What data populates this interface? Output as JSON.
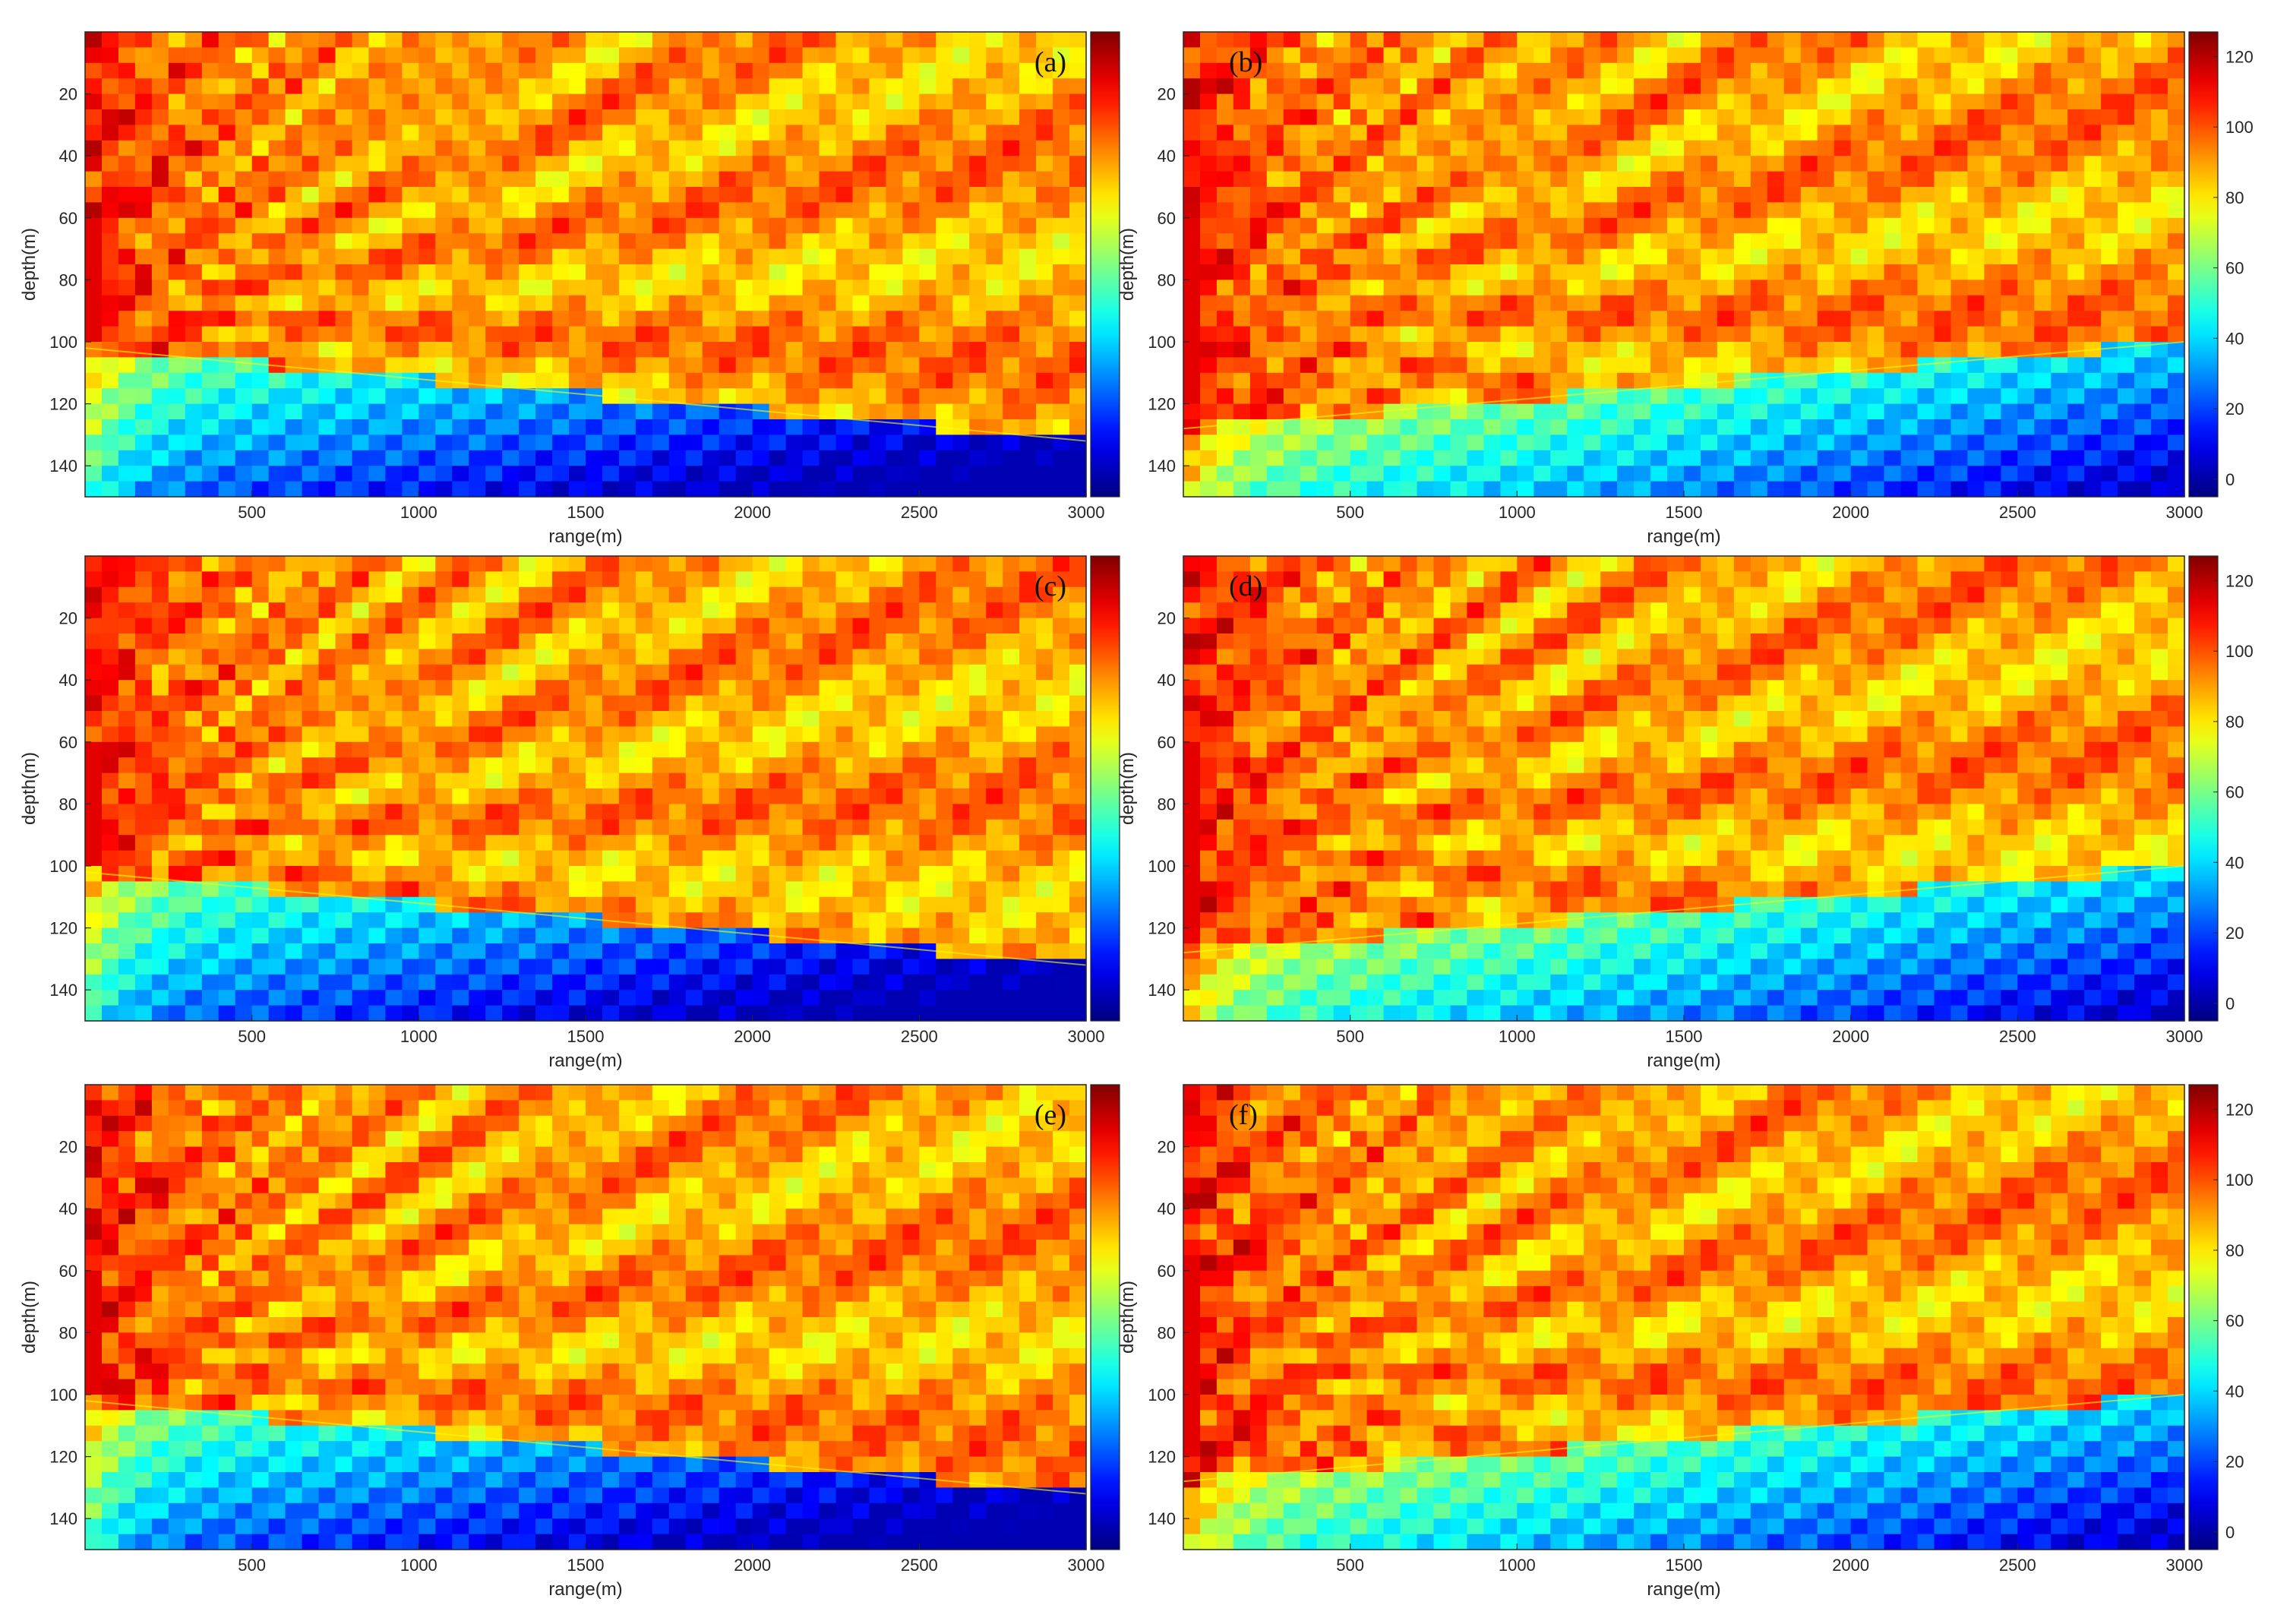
{
  "chart_data": [
    {
      "type": "heatmap",
      "panel_label": "(a)",
      "xlabel": "range(m)",
      "ylabel": "depth(m)",
      "xlim": [
        0,
        3000
      ],
      "ylim": [
        150,
        0
      ],
      "xticks": [
        500,
        1000,
        1500,
        2000,
        2500,
        3000
      ],
      "yticks": [
        20,
        40,
        60,
        80,
        100,
        120,
        140
      ],
      "colorbar": {
        "shown": true,
        "ticks_labeled": false
      },
      "colormap": "jet",
      "source_depth": 90,
      "interface_depth": {
        "x": [
          0,
          3000
        ],
        "y": [
          102,
          132
        ]
      },
      "lower_level": "low"
    },
    {
      "type": "heatmap",
      "panel_label": "(b)",
      "xlabel": "range(m)",
      "ylabel": "depth(m)",
      "xlim": [
        0,
        3000
      ],
      "ylim": [
        150,
        0
      ],
      "xticks": [
        500,
        1000,
        1500,
        2000,
        2500,
        3000
      ],
      "yticks": [
        20,
        40,
        60,
        80,
        100,
        120,
        140
      ],
      "colorbar": {
        "shown": true,
        "ticks": [
          0,
          20,
          40,
          60,
          80,
          100,
          120
        ]
      },
      "colormap": "jet",
      "source_depth": 90,
      "interface_depth": {
        "x": [
          0,
          3000
        ],
        "y": [
          128,
          100
        ]
      },
      "lower_level": "moderate"
    },
    {
      "type": "heatmap",
      "panel_label": "(c)",
      "xlabel": "range(m)",
      "ylabel": "depth(m)",
      "xlim": [
        0,
        3000
      ],
      "ylim": [
        150,
        0
      ],
      "xticks": [
        500,
        1000,
        1500,
        2000,
        2500,
        3000
      ],
      "yticks": [
        20,
        40,
        60,
        80,
        100,
        120,
        140
      ],
      "colorbar": {
        "shown": true,
        "ticks_labeled": false
      },
      "colormap": "jet",
      "source_depth": 90,
      "interface_depth": {
        "x": [
          0,
          3000
        ],
        "y": [
          102,
          132
        ]
      },
      "lower_level": "low"
    },
    {
      "type": "heatmap",
      "panel_label": "(d)",
      "xlabel": "range(m)",
      "ylabel": "depth(m)",
      "xlim": [
        0,
        3000
      ],
      "ylim": [
        150,
        0
      ],
      "xticks": [
        500,
        1000,
        1500,
        2000,
        2500,
        3000
      ],
      "yticks": [
        20,
        40,
        60,
        80,
        100,
        120,
        140
      ],
      "colorbar": {
        "shown": true,
        "ticks": [
          0,
          20,
          40,
          60,
          80,
          100,
          120
        ]
      },
      "colormap": "jet",
      "source_depth": 90,
      "interface_depth": {
        "x": [
          0,
          3000
        ],
        "y": [
          128,
          100
        ]
      },
      "lower_level": "moderate"
    },
    {
      "type": "heatmap",
      "panel_label": "(e)",
      "xlabel": "range(m)",
      "ylabel": "depth(m)",
      "xlim": [
        0,
        3000
      ],
      "ylim": [
        150,
        0
      ],
      "xticks": [
        500,
        1000,
        1500,
        2000,
        2500,
        3000
      ],
      "yticks": [
        20,
        40,
        60,
        80,
        100,
        120,
        140
      ],
      "colorbar": {
        "shown": true,
        "ticks_labeled": false
      },
      "colormap": "jet",
      "source_depth": 90,
      "interface_depth": {
        "x": [
          0,
          3000
        ],
        "y": [
          102,
          132
        ]
      },
      "lower_level": "low"
    },
    {
      "type": "heatmap",
      "panel_label": "(f)",
      "xlabel": "range(m)",
      "ylabel": "depth(m)",
      "xlim": [
        0,
        3000
      ],
      "ylim": [
        150,
        0
      ],
      "xticks": [
        500,
        1000,
        1500,
        2000,
        2500,
        3000
      ],
      "yticks": [
        20,
        40,
        60,
        80,
        100,
        120,
        140
      ],
      "colorbar": {
        "shown": true,
        "ticks": [
          0,
          20,
          40,
          60,
          80,
          100,
          120
        ]
      },
      "colormap": "jet",
      "source_depth": 90,
      "interface_depth": {
        "x": [
          0,
          3000
        ],
        "y": [
          128,
          100
        ]
      },
      "lower_level": "moderate"
    }
  ]
}
